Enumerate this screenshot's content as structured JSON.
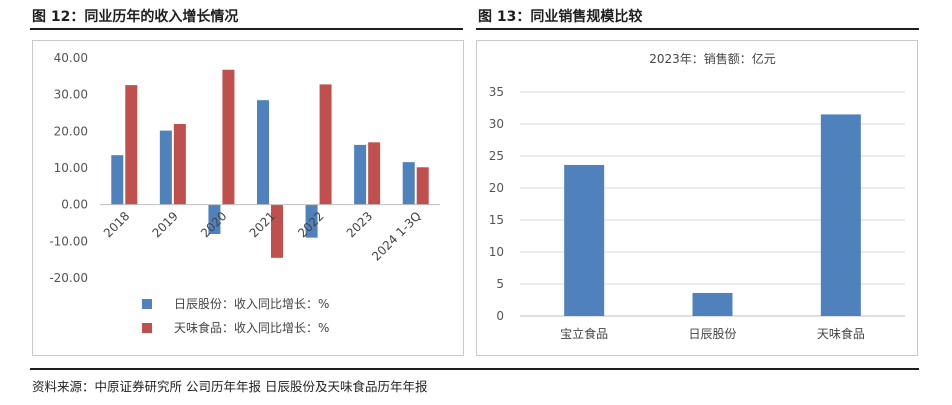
{
  "figures": [
    {
      "title": "图 12：同业历年的收入增长情况"
    },
    {
      "title": "图 13：同业销售规模比较"
    }
  ],
  "source": "资料来源：中原证券研究所   公司历年年报   日辰股份及天味食品历年年报",
  "colors": {
    "blue": "#4f81bd",
    "red": "#c0504d",
    "grid": "#d9d9d9",
    "axis": "#bfbfbf"
  },
  "chart_data": [
    {
      "type": "bar",
      "categories": [
        "2018",
        "2019",
        "2020",
        "2021",
        "2022",
        "2023",
        "2024 1-3Q"
      ],
      "series": [
        {
          "name": "日辰股份：收入同比增长：%",
          "values": [
            13.5,
            20.2,
            -8.0,
            28.5,
            -9.0,
            16.3,
            11.6
          ]
        },
        {
          "name": "天味食品：收入同比增长：%",
          "values": [
            32.6,
            22.0,
            36.8,
            -14.5,
            32.8,
            17.0,
            10.2
          ]
        }
      ],
      "ylim": [
        -20,
        40
      ],
      "yticks": [
        "40.00",
        "30.00",
        "20.00",
        "10.00",
        "0.00",
        "-10.00",
        "-20.00"
      ],
      "legend_position": "bottom",
      "grid": false
    },
    {
      "type": "bar",
      "title": "2023年：销售额：亿元",
      "categories": [
        "宝立食品",
        "日辰股份",
        "天味食品"
      ],
      "values": [
        23.6,
        3.6,
        31.5
      ],
      "ylim": [
        0,
        35
      ],
      "yticks": [
        "35",
        "30",
        "25",
        "20",
        "15",
        "10",
        "5",
        "0"
      ],
      "grid": true
    }
  ]
}
